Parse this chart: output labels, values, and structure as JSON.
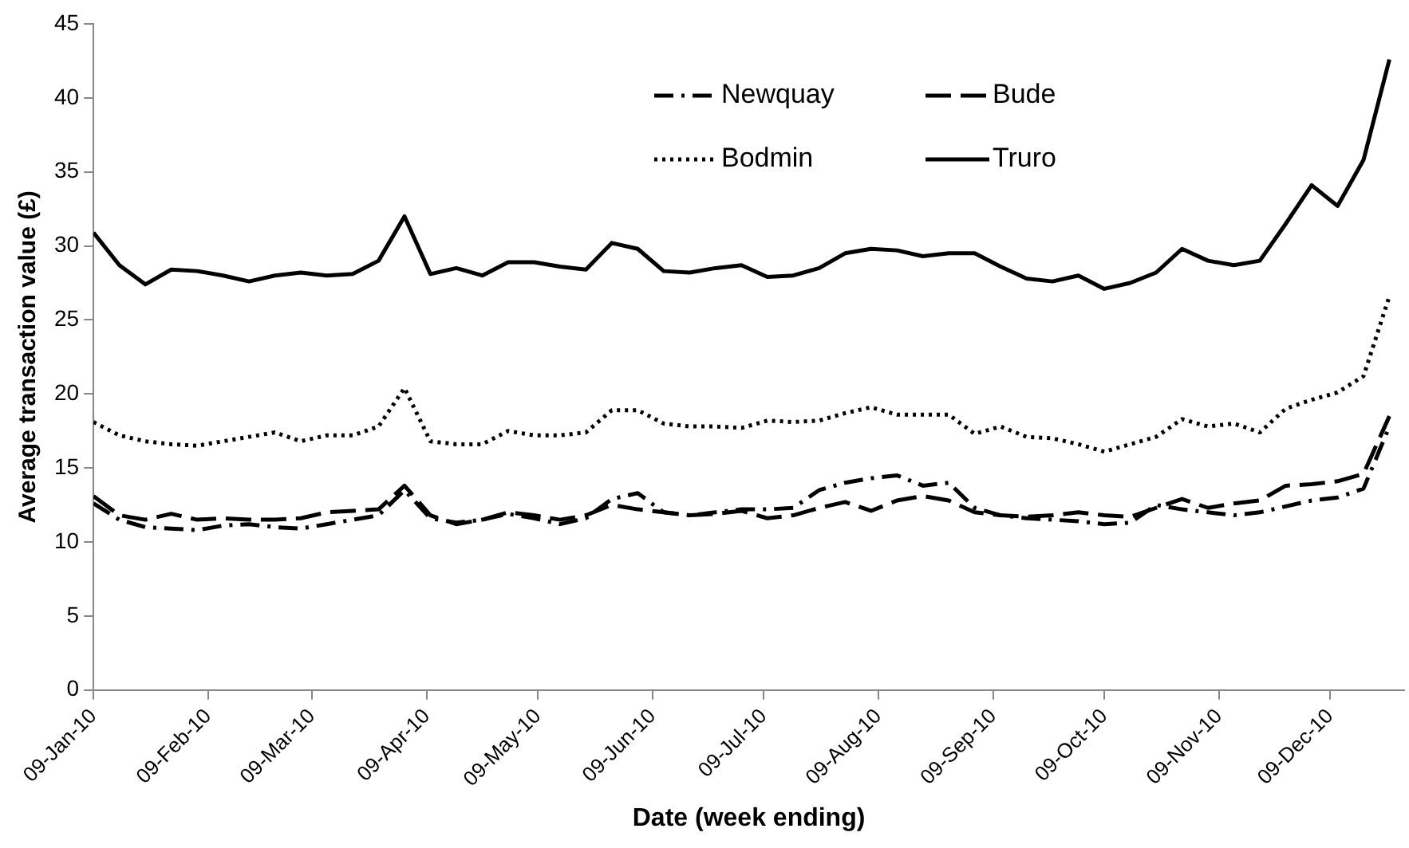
{
  "chart_data": {
    "type": "line",
    "xlabel": "Date (week ending)",
    "ylabel": "Average transaction value (£)",
    "x": [
      "2010-01-09",
      "2010-01-16",
      "2010-01-23",
      "2010-01-30",
      "2010-02-06",
      "2010-02-13",
      "2010-02-20",
      "2010-02-27",
      "2010-03-06",
      "2010-03-13",
      "2010-03-20",
      "2010-03-27",
      "2010-04-03",
      "2010-04-10",
      "2010-04-17",
      "2010-04-24",
      "2010-05-01",
      "2010-05-08",
      "2010-05-15",
      "2010-05-22",
      "2010-05-29",
      "2010-06-05",
      "2010-06-12",
      "2010-06-19",
      "2010-06-26",
      "2010-07-03",
      "2010-07-10",
      "2010-07-17",
      "2010-07-24",
      "2010-07-31",
      "2010-08-07",
      "2010-08-14",
      "2010-08-21",
      "2010-08-28",
      "2010-09-04",
      "2010-09-11",
      "2010-09-18",
      "2010-09-25",
      "2010-10-02",
      "2010-10-09",
      "2010-10-16",
      "2010-10-23",
      "2010-10-30",
      "2010-11-06",
      "2010-11-13",
      "2010-11-20",
      "2010-11-27",
      "2010-12-04",
      "2010-12-11",
      "2010-12-18",
      "2010-12-25"
    ],
    "series": [
      {
        "name": "Newquay",
        "color": "#000000",
        "line_style": "dashdot",
        "values": [
          12.6,
          11.5,
          11.0,
          10.9,
          10.8,
          11.1,
          11.2,
          11.0,
          10.9,
          11.2,
          11.5,
          11.8,
          13.5,
          11.6,
          11.3,
          11.5,
          11.9,
          11.6,
          11.2,
          11.6,
          12.9,
          13.3,
          12.0,
          11.8,
          12.0,
          12.2,
          12.2,
          12.3,
          13.5,
          14.0,
          14.3,
          14.5,
          13.8,
          14.0,
          12.3,
          11.8,
          11.6,
          11.5,
          11.4,
          11.2,
          11.3,
          12.5,
          12.2,
          12.0,
          11.8,
          12.0,
          12.4,
          12.8,
          13.0,
          13.6,
          17.8
        ]
      },
      {
        "name": "Bude",
        "color": "#000000",
        "line_style": "dashed",
        "values": [
          13.1,
          11.8,
          11.5,
          11.9,
          11.5,
          11.6,
          11.5,
          11.5,
          11.6,
          12.0,
          12.1,
          12.2,
          13.8,
          11.8,
          11.2,
          11.5,
          12.0,
          11.8,
          11.5,
          11.8,
          12.5,
          12.2,
          12.0,
          11.8,
          11.9,
          12.1,
          11.6,
          11.8,
          12.3,
          12.7,
          12.1,
          12.8,
          13.1,
          12.8,
          12.0,
          11.8,
          11.7,
          11.8,
          12.0,
          11.8,
          11.7,
          12.3,
          12.9,
          12.3,
          12.6,
          12.8,
          13.8,
          13.9,
          14.1,
          14.6,
          18.5
        ]
      },
      {
        "name": "Bodmin",
        "color": "#000000",
        "line_style": "dotted",
        "values": [
          18.1,
          17.2,
          16.8,
          16.6,
          16.5,
          16.8,
          17.1,
          17.4,
          16.8,
          17.2,
          17.2,
          17.8,
          20.4,
          16.8,
          16.6,
          16.6,
          17.5,
          17.2,
          17.2,
          17.4,
          18.9,
          18.9,
          18.0,
          17.8,
          17.8,
          17.7,
          18.2,
          18.1,
          18.2,
          18.7,
          19.1,
          18.6,
          18.6,
          18.6,
          17.3,
          17.8,
          17.1,
          17.0,
          16.6,
          16.1,
          16.6,
          17.1,
          18.3,
          17.8,
          18.0,
          17.4,
          19.0,
          19.6,
          20.1,
          21.2,
          26.6
        ]
      },
      {
        "name": "Truro",
        "color": "#000000",
        "line_style": "solid",
        "values": [
          30.9,
          28.7,
          27.4,
          28.4,
          28.3,
          28.0,
          27.6,
          28.0,
          28.2,
          28.0,
          28.1,
          29.0,
          32.0,
          28.1,
          28.5,
          28.0,
          28.9,
          28.9,
          28.6,
          28.4,
          30.2,
          29.8,
          28.3,
          28.2,
          28.5,
          28.7,
          27.9,
          28.0,
          28.5,
          29.5,
          29.8,
          29.7,
          29.3,
          29.5,
          29.5,
          28.6,
          27.8,
          27.6,
          28.0,
          27.1,
          27.5,
          28.2,
          29.8,
          29.0,
          28.7,
          29.0,
          31.5,
          34.1,
          32.7,
          35.8,
          42.6
        ]
      }
    ],
    "xlim": [
      "2010-01-09",
      "2010-12-29"
    ],
    "xticks": [
      {
        "value": "2010-01-09",
        "label": "09-Jan-10"
      },
      {
        "value": "2010-02-09",
        "label": "09-Feb-10"
      },
      {
        "value": "2010-03-09",
        "label": "09-Mar-10"
      },
      {
        "value": "2010-04-09",
        "label": "09-Apr-10"
      },
      {
        "value": "2010-05-09",
        "label": "09-May-10"
      },
      {
        "value": "2010-06-09",
        "label": "09-Jun-10"
      },
      {
        "value": "2010-07-09",
        "label": "09-Jul-10"
      },
      {
        "value": "2010-08-09",
        "label": "09-Aug-10"
      },
      {
        "value": "2010-09-09",
        "label": "09-Sep-10"
      },
      {
        "value": "2010-10-09",
        "label": "09-Oct-10"
      },
      {
        "value": "2010-11-09",
        "label": "09-Nov-10"
      },
      {
        "value": "2010-12-09",
        "label": "09-Dec-10"
      }
    ],
    "ylim": [
      0,
      45
    ],
    "yticks": [
      0,
      5,
      10,
      15,
      20,
      25,
      30,
      35,
      40,
      45
    ],
    "grid": false,
    "legend": "top right",
    "marker": "none"
  }
}
